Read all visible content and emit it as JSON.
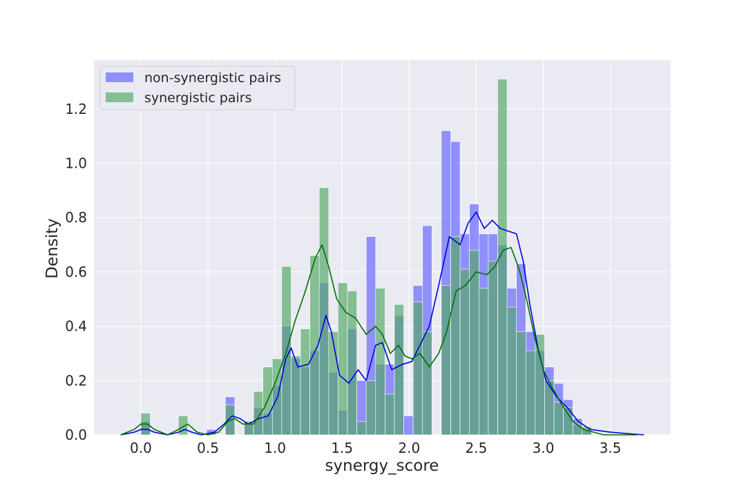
{
  "chart_data": {
    "type": "histogram",
    "xlabel": "synergy_score",
    "ylabel": "Density",
    "xlim": [
      -0.35,
      3.95
    ],
    "ylim": [
      0,
      1.38
    ],
    "x_ticks": [
      "0.0",
      "0.5",
      "1.0",
      "1.5",
      "2.0",
      "2.5",
      "3.0",
      "3.5"
    ],
    "y_ticks": [
      "0.0",
      "0.2",
      "0.4",
      "0.6",
      "0.8",
      "1.0",
      "1.2"
    ],
    "grid": true,
    "background": "#eaeaf2",
    "legend_position": "top-left",
    "bin_width": 0.07,
    "bin_starts": [
      0.0,
      0.07,
      0.14,
      0.21,
      0.28,
      0.35,
      0.42,
      0.49,
      0.56,
      0.63,
      0.7,
      0.77,
      0.84,
      0.91,
      0.98,
      1.05,
      1.12,
      1.19,
      1.26,
      1.33,
      1.4,
      1.47,
      1.54,
      1.61,
      1.68,
      1.75,
      1.82,
      1.89,
      1.96,
      2.03,
      2.1,
      2.17,
      2.24,
      2.31,
      2.38,
      2.45,
      2.52,
      2.59,
      2.66,
      2.73,
      2.8,
      2.87,
      2.94,
      3.01,
      3.08,
      3.15,
      3.22,
      3.29
    ],
    "series": [
      {
        "name": "non-synergistic pairs",
        "color": "#6666ff",
        "kde_color": "#0000dd",
        "densities": [
          0.05,
          0,
          0,
          0,
          0,
          0,
          0,
          0.02,
          0,
          0.14,
          0,
          0.04,
          0.1,
          0.08,
          0.18,
          0.4,
          0.28,
          0.25,
          0.31,
          0.56,
          0.23,
          0.09,
          0.39,
          0.2,
          0.73,
          0.26,
          0.26,
          0.44,
          0.07,
          0.55,
          0.77,
          0,
          1.12,
          1.08,
          0.74,
          0.85,
          0.74,
          0.74,
          0.7,
          0.54,
          0.63,
          0.38,
          0.31,
          0.25,
          0.19,
          0.13,
          0.06,
          0.02
        ],
        "kde": [
          [
            -0.15,
            0.0
          ],
          [
            -0.05,
            0.01
          ],
          [
            0.0,
            0.02
          ],
          [
            0.05,
            0.02
          ],
          [
            0.1,
            0.01
          ],
          [
            0.2,
            0.0
          ],
          [
            0.28,
            0.01
          ],
          [
            0.33,
            0.02
          ],
          [
            0.38,
            0.01
          ],
          [
            0.45,
            0.0
          ],
          [
            0.55,
            0.01
          ],
          [
            0.62,
            0.04
          ],
          [
            0.68,
            0.07
          ],
          [
            0.74,
            0.06
          ],
          [
            0.8,
            0.04
          ],
          [
            0.88,
            0.06
          ],
          [
            0.95,
            0.07
          ],
          [
            1.02,
            0.14
          ],
          [
            1.08,
            0.28
          ],
          [
            1.12,
            0.32
          ],
          [
            1.17,
            0.25
          ],
          [
            1.25,
            0.26
          ],
          [
            1.32,
            0.33
          ],
          [
            1.38,
            0.44
          ],
          [
            1.42,
            0.38
          ],
          [
            1.48,
            0.22
          ],
          [
            1.55,
            0.19
          ],
          [
            1.62,
            0.24
          ],
          [
            1.68,
            0.2
          ],
          [
            1.75,
            0.33
          ],
          [
            1.8,
            0.34
          ],
          [
            1.87,
            0.24
          ],
          [
            1.95,
            0.26
          ],
          [
            2.02,
            0.27
          ],
          [
            2.08,
            0.33
          ],
          [
            2.15,
            0.4
          ],
          [
            2.22,
            0.55
          ],
          [
            2.3,
            0.73
          ],
          [
            2.38,
            0.7
          ],
          [
            2.44,
            0.78
          ],
          [
            2.5,
            0.82
          ],
          [
            2.56,
            0.76
          ],
          [
            2.62,
            0.79
          ],
          [
            2.68,
            0.76
          ],
          [
            2.74,
            0.75
          ],
          [
            2.8,
            0.74
          ],
          [
            2.85,
            0.64
          ],
          [
            2.9,
            0.48
          ],
          [
            2.96,
            0.32
          ],
          [
            3.02,
            0.2
          ],
          [
            3.1,
            0.14
          ],
          [
            3.18,
            0.1
          ],
          [
            3.26,
            0.05
          ],
          [
            3.35,
            0.02
          ],
          [
            3.5,
            0.01
          ],
          [
            3.75,
            0.0
          ]
        ]
      },
      {
        "name": "synergistic pairs",
        "color": "#55a868",
        "kde_color": "#007000",
        "densities": [
          0.08,
          0,
          0,
          0,
          0.07,
          0,
          0,
          0,
          0,
          0.11,
          0,
          0.05,
          0.16,
          0.25,
          0.28,
          0.62,
          0.29,
          0.39,
          0.66,
          0.91,
          0.38,
          0.56,
          0.53,
          0.05,
          0.2,
          0.54,
          0.15,
          0.48,
          0,
          0.49,
          0.38,
          0,
          0.55,
          0.73,
          0.61,
          0.68,
          0.54,
          0.64,
          1.31,
          0.47,
          0.38,
          0.31,
          0.37,
          0.2,
          0.12,
          0.1,
          0.04,
          0.03
        ],
        "kde": [
          [
            -0.15,
            0.0
          ],
          [
            -0.05,
            0.02
          ],
          [
            0.0,
            0.04
          ],
          [
            0.05,
            0.04
          ],
          [
            0.1,
            0.02
          ],
          [
            0.2,
            0.0
          ],
          [
            0.28,
            0.02
          ],
          [
            0.35,
            0.04
          ],
          [
            0.42,
            0.01
          ],
          [
            0.5,
            0.0
          ],
          [
            0.58,
            0.01
          ],
          [
            0.65,
            0.05
          ],
          [
            0.7,
            0.06
          ],
          [
            0.76,
            0.04
          ],
          [
            0.84,
            0.04
          ],
          [
            0.92,
            0.1
          ],
          [
            1.0,
            0.19
          ],
          [
            1.08,
            0.3
          ],
          [
            1.15,
            0.42
          ],
          [
            1.22,
            0.52
          ],
          [
            1.3,
            0.65
          ],
          [
            1.35,
            0.7
          ],
          [
            1.4,
            0.62
          ],
          [
            1.46,
            0.5
          ],
          [
            1.53,
            0.45
          ],
          [
            1.6,
            0.43
          ],
          [
            1.68,
            0.37
          ],
          [
            1.75,
            0.4
          ],
          [
            1.8,
            0.37
          ],
          [
            1.86,
            0.3
          ],
          [
            1.92,
            0.33
          ],
          [
            1.97,
            0.29
          ],
          [
            2.02,
            0.28
          ],
          [
            2.08,
            0.3
          ],
          [
            2.15,
            0.25
          ],
          [
            2.22,
            0.3
          ],
          [
            2.28,
            0.38
          ],
          [
            2.35,
            0.53
          ],
          [
            2.42,
            0.55
          ],
          [
            2.5,
            0.6
          ],
          [
            2.58,
            0.59
          ],
          [
            2.64,
            0.62
          ],
          [
            2.7,
            0.68
          ],
          [
            2.76,
            0.69
          ],
          [
            2.82,
            0.61
          ],
          [
            2.88,
            0.49
          ],
          [
            2.94,
            0.35
          ],
          [
            3.0,
            0.24
          ],
          [
            3.06,
            0.18
          ],
          [
            3.14,
            0.11
          ],
          [
            3.22,
            0.05
          ],
          [
            3.3,
            0.02
          ],
          [
            3.45,
            0.0
          ],
          [
            3.7,
            0.0
          ]
        ]
      }
    ]
  }
}
